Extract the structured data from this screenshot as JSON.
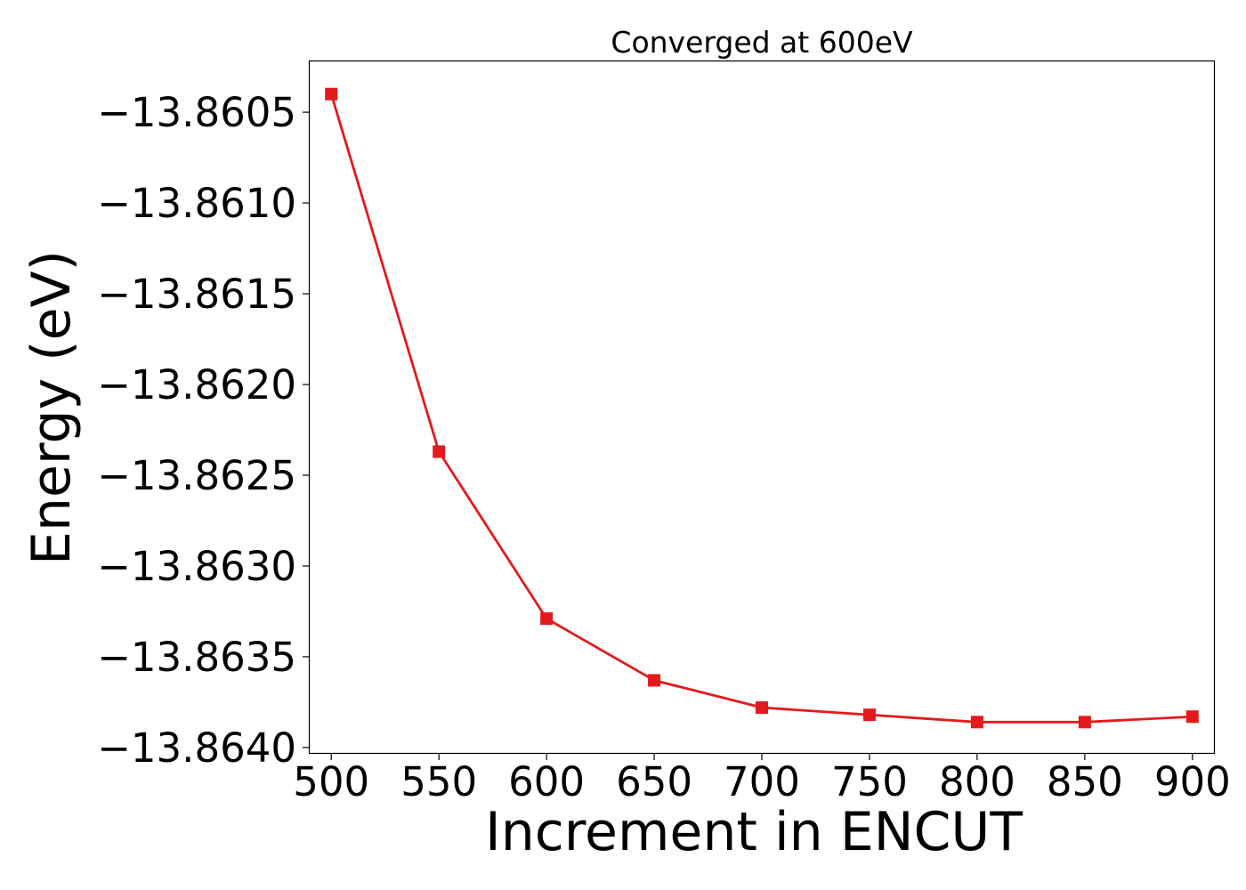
{
  "chart_data": {
    "type": "line",
    "title": "Converged at 600eV",
    "xlabel": "Increment in ENCUT",
    "ylabel": "Energy (eV)",
    "x": [
      500,
      550,
      600,
      650,
      700,
      750,
      800,
      850,
      900
    ],
    "x_ticks": [
      "500",
      "550",
      "600",
      "650",
      "700",
      "750",
      "800",
      "850",
      "900"
    ],
    "y_ticks": [
      -13.8605,
      -13.861,
      -13.8615,
      -13.862,
      -13.8625,
      -13.863,
      -13.8635,
      -13.864
    ],
    "y_tick_labels": [
      "−13.8605",
      "−13.8610",
      "−13.8615",
      "−13.8620",
      "−13.8625",
      "−13.8630",
      "−13.8635",
      "−13.8640"
    ],
    "xlim": [
      490,
      910
    ],
    "ylim": [
      -13.86403,
      -13.86022
    ],
    "grid": false,
    "series": [
      {
        "color": "#e31a1c",
        "marker": "square",
        "values": [
          -13.8604,
          -13.86237,
          -13.86329,
          -13.86363,
          -13.86378,
          -13.86382,
          -13.86386,
          -13.86386,
          -13.86383
        ]
      }
    ]
  }
}
